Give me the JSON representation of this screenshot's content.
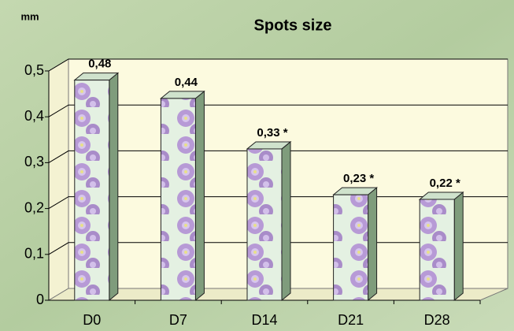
{
  "chart_data": {
    "type": "bar3d",
    "title": "Spots size",
    "y_label": "mm",
    "categories": [
      "D0",
      "D7",
      "D14",
      "D21",
      "D28"
    ],
    "values": [
      0.48,
      0.44,
      0.33,
      0.23,
      0.22
    ],
    "value_labels": [
      "0,48",
      "0,44",
      "0,33 *",
      "0,23 *",
      "0,22 *"
    ],
    "color": "#e4f1e2",
    "ylim": [
      0,
      0.5
    ],
    "yticks": [
      0,
      {
        "value": 0.1,
        "label": "0,1"
      },
      {
        "value": 0.2,
        "label": "0,2"
      },
      {
        "value": 0.3,
        "label": "0,3"
      },
      {
        "value": 0.4,
        "label": "0,4"
      },
      {
        "value": 0.5,
        "label": "0,5"
      }
    ],
    "grid": true
  }
}
